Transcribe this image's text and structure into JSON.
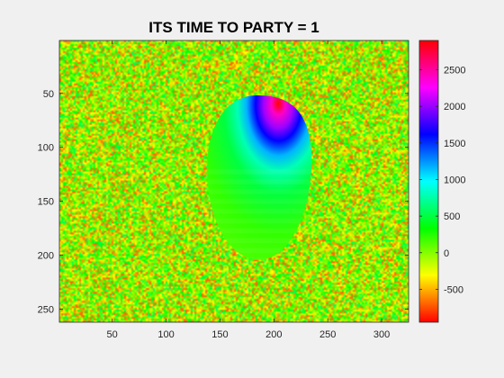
{
  "chart_data": {
    "type": "heatmap",
    "title": "ITS TIME TO PARTY = 1",
    "xlabel": "",
    "ylabel": "",
    "xlim": [
      1,
      325
    ],
    "ylim": [
      1,
      262
    ],
    "y_direction": "reverse",
    "x_ticks": [
      50,
      100,
      150,
      200,
      250,
      300
    ],
    "y_ticks": [
      50,
      100,
      150,
      200,
      250
    ],
    "colormap": "hsv",
    "color_limits": [
      -950,
      2900
    ],
    "colorbar": {
      "location": "right",
      "ticks": [
        -500,
        0,
        500,
        1000,
        1500,
        2000,
        2500
      ]
    },
    "background": {
      "description": "uniform random noise",
      "value_range": [
        -950,
        2900
      ],
      "dominant_colors": [
        "#00ff00",
        "#ffff00",
        "#ff8800"
      ]
    },
    "region": {
      "shape": "egg",
      "x_range": [
        138,
        235
      ],
      "y_range": [
        52,
        204
      ],
      "value_gradient": [
        {
          "y": 200,
          "value": 280
        },
        {
          "y": 150,
          "value": 350
        },
        {
          "y": 110,
          "value": 600
        },
        {
          "y": 80,
          "value": 1300
        },
        {
          "y": 60,
          "value": 2300
        },
        {
          "y": 52,
          "value": 2900
        }
      ]
    },
    "grid": false
  }
}
